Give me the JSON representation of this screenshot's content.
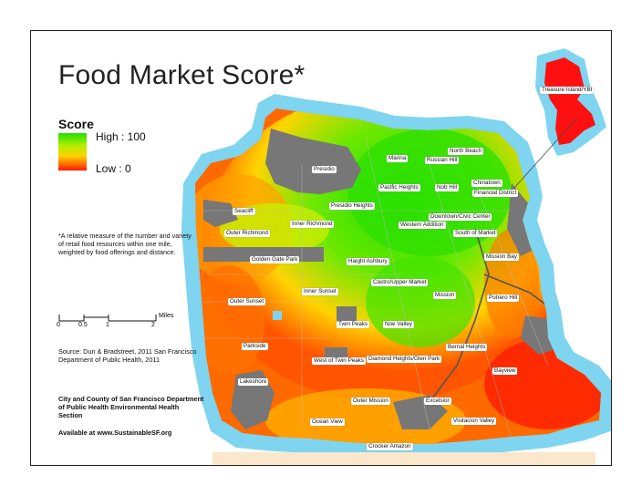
{
  "title": "Food Market Score*",
  "legend": {
    "title": "Score",
    "high_label": "High : 100",
    "low_label": "Low : 0",
    "colors": {
      "high": "#22e000",
      "mid": "#ffd000",
      "low": "#ff1800"
    }
  },
  "footnote": "*A relative measure of the number and variety of retail food resources within one mile, weighted by food offerings and distance.",
  "scale_bar": {
    "ticks": [
      "0",
      "0.5",
      "1",
      "2"
    ],
    "unit": "Miles"
  },
  "source": "Source: Dun & Bradstreet, 2011 San Francisco Department of Public Health, 2011",
  "agency": "City and County of San Francisco Department of Public Health Environmental Health Section",
  "available": "Available at www.SustainableSF.org",
  "neighborhoods": [
    "Treasure Island/YBI",
    "North Beach",
    "Marina",
    "Russian Hill",
    "Chinatown",
    "Presidio",
    "Nob Hill",
    "Financial District",
    "Pacific Heights",
    "Seacliff",
    "Presidio Heights",
    "Downtown/Civic Center",
    "Inner Richmond",
    "Western Addition",
    "Outer Richmond",
    "South of Market",
    "Golden Gate Park",
    "Haight Ashbury",
    "Mission Bay",
    "Castro/Upper Market",
    "Inner Sunset",
    "Outer Sunset",
    "Mission",
    "Potrero Hill",
    "Twin Peaks",
    "Noe Valley",
    "Bernal Heights",
    "Parkside",
    "West of Twin Peaks",
    "Diamond Heights/Glen Park",
    "Bayview",
    "Lakeshore",
    "Outer Mission",
    "Excelsior",
    "Ocean View",
    "Visitacion Valley",
    "Crocker Amazon"
  ]
}
